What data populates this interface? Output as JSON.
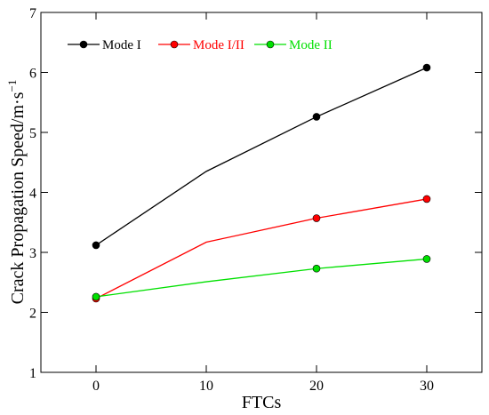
{
  "chart_data": {
    "type": "line",
    "title": "",
    "xlabel": "FTCs",
    "ylabel": "Crack Propagation Speed/m·s",
    "ylabel_superscript": "−1",
    "xlim": [
      -5,
      35
    ],
    "ylim": [
      1,
      7
    ],
    "xticks": [
      0,
      10,
      20,
      30
    ],
    "yticks": [
      1,
      2,
      3,
      4,
      5,
      6,
      7
    ],
    "grid": false,
    "legend_position": "top-left",
    "series": [
      {
        "name": "Mode I",
        "color": "#000000",
        "x": [
          0,
          10,
          20,
          30
        ],
        "y": [
          3.12,
          4.35,
          5.26,
          6.08
        ],
        "markers": [
          true,
          false,
          true,
          true
        ]
      },
      {
        "name": "Mode I/II",
        "color": "#ff0000",
        "x": [
          0,
          10,
          20,
          30
        ],
        "y": [
          2.23,
          3.17,
          3.57,
          3.89
        ],
        "markers": [
          true,
          false,
          true,
          true
        ]
      },
      {
        "name": "Mode II",
        "color": "#00e000",
        "x": [
          0,
          10,
          20,
          30
        ],
        "y": [
          2.26,
          2.51,
          2.73,
          2.89
        ],
        "markers": [
          true,
          false,
          true,
          true
        ]
      }
    ]
  }
}
